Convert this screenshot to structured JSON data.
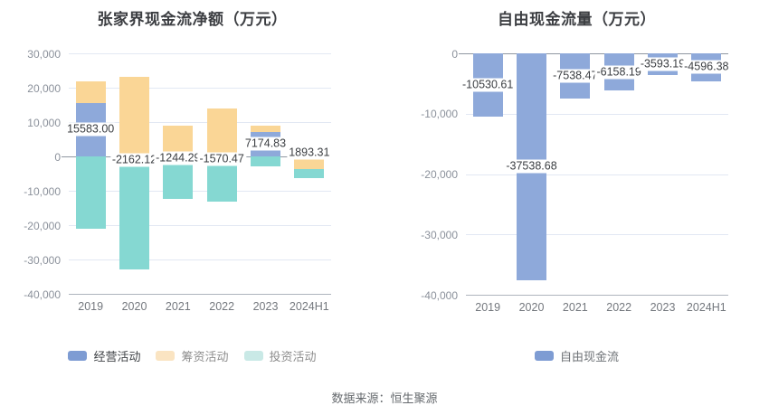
{
  "caption": "数据来源：恒生聚源",
  "chart_data": [
    {
      "id": "net-cash-flow",
      "type": "bar",
      "stacked": true,
      "title": "张家界现金流净额（万元）",
      "categories": [
        "2019",
        "2020",
        "2021",
        "2022",
        "2023",
        "2024H1"
      ],
      "series": [
        {
          "name": "经营活动",
          "color": "#8EA9DA",
          "legend_color": "#7E9CD3",
          "legend_text_color": "#3f4246",
          "values": [
            15583.0,
            -2162.12,
            -1244.29,
            -1570.47,
            7174.83,
            1893.31
          ]
        },
        {
          "name": "筹资活动",
          "color": "#FAD696",
          "legend_color": "#FAE4C2",
          "legend_text_color": "#8d8d8d",
          "values": [
            6300,
            23100,
            9000,
            13900,
            1800,
            -3800
          ]
        },
        {
          "name": "投资活动",
          "color": "#85D8D2",
          "legend_color": "#C9E9E6",
          "legend_text_color": "#8d8d8d",
          "values": [
            -21000,
            -30800,
            -11200,
            -11500,
            -3000,
            -2600
          ]
        }
      ],
      "label_series": "经营活动",
      "bar_labels": [
        "15583.00",
        "-2162.12",
        "-1244.29",
        "-1570.47",
        "7174.83",
        "1893.31"
      ],
      "y_ticks": [
        "30,000",
        "20,000",
        "10,000",
        "0",
        "-10,000",
        "-20,000",
        "-30,000",
        "-40,000"
      ],
      "ylim": [
        -40000,
        30000
      ],
      "grid": true,
      "legend_position": "bottom"
    },
    {
      "id": "free-cash-flow",
      "type": "bar",
      "stacked": false,
      "title": "自由现金流量（万元）",
      "categories": [
        "2019",
        "2020",
        "2021",
        "2022",
        "2023",
        "2024H1"
      ],
      "series": [
        {
          "name": "自由现金流",
          "color": "#8EA9DA",
          "legend_color": "#7E9CD3",
          "legend_text_color": "#6e7276",
          "values": [
            -10530.61,
            -37538.68,
            -7538.47,
            -6158.19,
            -3593.19,
            -4596.38
          ]
        }
      ],
      "label_series": "自由现金流",
      "bar_labels": [
        "-10530.61",
        "-37538.68",
        "-7538.47",
        "-6158.19",
        "-3593.19",
        "-4596.38"
      ],
      "y_ticks": [
        "0",
        "-10,000",
        "-20,000",
        "-30,000",
        "-40,000"
      ],
      "ylim": [
        -40000,
        0
      ],
      "grid": true,
      "legend_position": "bottom"
    }
  ]
}
